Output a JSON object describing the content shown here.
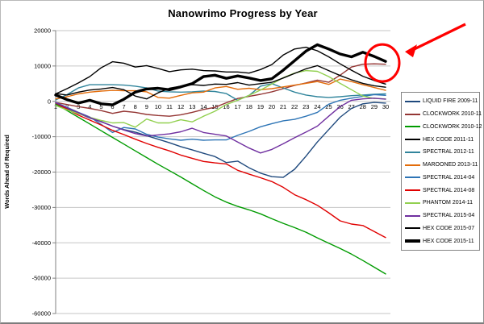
{
  "chart_data": {
    "type": "line",
    "title": "Nanowrimo Progress by Year",
    "ylabel": "Words Ahead of Required",
    "xlabel": "",
    "x": [
      1,
      2,
      3,
      4,
      5,
      6,
      7,
      8,
      9,
      10,
      11,
      12,
      13,
      14,
      15,
      16,
      17,
      18,
      19,
      20,
      21,
      22,
      23,
      24,
      25,
      26,
      27,
      28,
      29,
      30
    ],
    "ylim": [
      -60000,
      20000
    ],
    "ytick_interval": 10000,
    "yticks": [
      "20000",
      "10000",
      "0",
      "-10000",
      "-20000",
      "-30000",
      "-40000",
      "-50000",
      "-60000"
    ],
    "grid": true,
    "legend_position": "right",
    "series": [
      {
        "name": "LIQUID FIRE 2009-11",
        "color": "#1F497D",
        "line_width": 1.4,
        "values": [
          -800,
          -2000,
          -3400,
          -4700,
          -5700,
          -7000,
          -8000,
          -8700,
          -9700,
          -10700,
          -11700,
          -12800,
          -13700,
          -14700,
          -15600,
          -17300,
          -16900,
          -18800,
          -20300,
          -21300,
          -21500,
          -19200,
          -15500,
          -11500,
          -8000,
          -4500,
          -2000,
          -700,
          -300,
          -500
        ]
      },
      {
        "name": "CLOCKWORK 2010-11",
        "color": "#943634",
        "line_width": 1.4,
        "values": [
          -300,
          -900,
          -1500,
          -2000,
          -2600,
          -3400,
          -2800,
          -3100,
          -3700,
          -4000,
          -4200,
          -3800,
          -3100,
          -2300,
          -1700,
          -400,
          800,
          1400,
          2000,
          2700,
          3600,
          4500,
          5200,
          6000,
          5400,
          7400,
          9700,
          10500,
          10600,
          10500
        ]
      },
      {
        "name": "CLOCKWORK 2010-12",
        "color": "#009B00",
        "line_width": 1.4,
        "values": [
          -700,
          -2600,
          -4500,
          -6400,
          -8300,
          -10200,
          -12100,
          -14000,
          -15900,
          -17800,
          -19600,
          -21400,
          -23300,
          -25200,
          -27000,
          -28500,
          -29700,
          -30700,
          -31800,
          -33200,
          -34500,
          -35700,
          -37000,
          -38600,
          -40100,
          -41600,
          -43200,
          -45000,
          -46900,
          -48800
        ]
      },
      {
        "name": "HEX CODE 2011-11",
        "color": "#000000",
        "line_width": 1.4,
        "values": [
          2100,
          3600,
          5200,
          7000,
          9500,
          11200,
          10800,
          9700,
          10100,
          9300,
          8400,
          8900,
          9100,
          8700,
          8600,
          8300,
          8300,
          8000,
          9000,
          10400,
          13100,
          14800,
          15300,
          14300,
          12600,
          10600,
          8800,
          7100,
          5900,
          4900
        ]
      },
      {
        "name": "SPECTRAL 2012-11",
        "color": "#31859C",
        "line_width": 1.4,
        "values": [
          400,
          1900,
          3800,
          4700,
          4700,
          4700,
          4600,
          4300,
          3800,
          2900,
          2700,
          2600,
          2700,
          2900,
          2800,
          2200,
          300,
          1700,
          4300,
          5000,
          3800,
          2600,
          1800,
          1300,
          1100,
          1300,
          1600,
          1800,
          2000,
          2100
        ]
      },
      {
        "name": "MAROONED 2013-11",
        "color": "#E36C0A",
        "line_width": 1.4,
        "values": [
          700,
          1300,
          2100,
          2600,
          2900,
          3100,
          3000,
          3000,
          2700,
          1100,
          900,
          1700,
          2400,
          2600,
          3800,
          4200,
          3400,
          3700,
          3300,
          3600,
          4100,
          4600,
          5100,
          5600,
          4800,
          6300,
          5600,
          4700,
          3900,
          3100
        ]
      },
      {
        "name": "SPECTRAL 2014-04",
        "color": "#2E75B6",
        "line_width": 1.4,
        "values": [
          -300,
          -1700,
          -3100,
          -4400,
          -6500,
          -8800,
          -7400,
          -7800,
          -9300,
          -10100,
          -10600,
          -11000,
          -10700,
          -11000,
          -10900,
          -10900,
          -9600,
          -8500,
          -7200,
          -6300,
          -5500,
          -5100,
          -4200,
          -3100,
          -800,
          300,
          900,
          1400,
          1900,
          1700
        ]
      },
      {
        "name": "SPECTRAL 2014-08",
        "color": "#E00000",
        "line_width": 1.4,
        "values": [
          -500,
          -2200,
          -3900,
          -5300,
          -6700,
          -8200,
          -9400,
          -10700,
          -11900,
          -13000,
          -14000,
          -15200,
          -16100,
          -17000,
          -17400,
          -17700,
          -19500,
          -20600,
          -21600,
          -22700,
          -24300,
          -26400,
          -27800,
          -29400,
          -31500,
          -33800,
          -34700,
          -35100,
          -36800,
          -38500
        ]
      },
      {
        "name": "PHANTOM 2014-11",
        "color": "#92D050",
        "line_width": 1.4,
        "values": [
          -1200,
          -2400,
          -3500,
          -4500,
          -5400,
          -6100,
          -6000,
          -7300,
          -5000,
          -6100,
          -6100,
          -5200,
          -5800,
          -4200,
          -2800,
          -900,
          300,
          1700,
          3200,
          4900,
          6700,
          8000,
          8700,
          8500,
          7000,
          5100,
          3300,
          1500,
          800,
          700
        ]
      },
      {
        "name": "SPECTRAL 2015-04",
        "color": "#7030A0",
        "line_width": 1.4,
        "values": [
          -400,
          -1800,
          -3200,
          -4600,
          -5800,
          -7000,
          -8100,
          -9100,
          -9800,
          -9500,
          -9200,
          -8600,
          -7600,
          -8800,
          -9300,
          -9800,
          -11500,
          -13200,
          -14600,
          -13600,
          -12000,
          -10300,
          -8700,
          -7000,
          -4200,
          -1500,
          300,
          700,
          900,
          600
        ]
      },
      {
        "name": "HEX CODE 2015-07",
        "color": "#000000",
        "line_width": 1.4,
        "values": [
          2200,
          1800,
          2600,
          3200,
          3500,
          3900,
          3300,
          1500,
          700,
          2400,
          3700,
          4300,
          4700,
          4500,
          4900,
          4800,
          5300,
          4600,
          5000,
          5400,
          6600,
          7900,
          9200,
          10100,
          8700,
          7300,
          6100,
          5100,
          4400,
          4000
        ]
      },
      {
        "name": "HEX CODE 2015-11",
        "color": "#000000",
        "line_width": 3.4,
        "values": [
          1800,
          500,
          -500,
          300,
          -700,
          -1000,
          600,
          2600,
          3500,
          3700,
          3300,
          4100,
          5000,
          7000,
          7400,
          6500,
          7200,
          6600,
          5900,
          6400,
          8800,
          11500,
          14200,
          16000,
          14800,
          13400,
          12600,
          13900,
          12700,
          11300
        ]
      }
    ],
    "annotation": {
      "shape": "ellipse-and-arrow",
      "color": "#FF0000",
      "highlighted_series": "HEX CODE 2015-11",
      "highlighted_day": 30
    }
  }
}
